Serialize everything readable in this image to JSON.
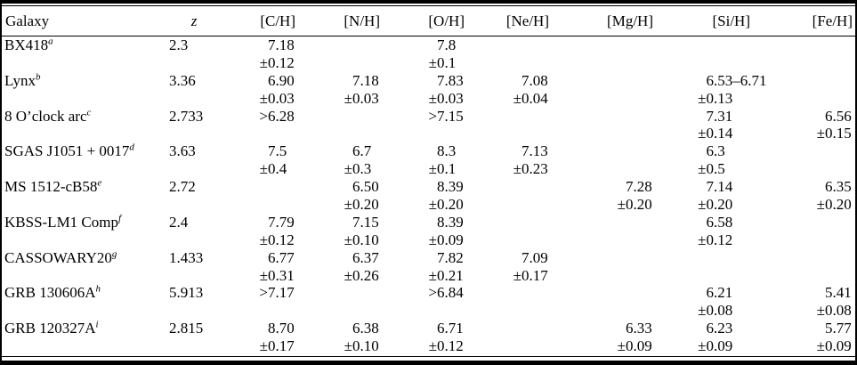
{
  "colors": {
    "text": "#000000",
    "background": "#ffffff",
    "rule": "#000000"
  },
  "table": {
    "columns": [
      {
        "key": "galaxy",
        "label": "Galaxy"
      },
      {
        "key": "z",
        "label": "z"
      },
      {
        "key": "c-h",
        "label": "[C/H]"
      },
      {
        "key": "n-h",
        "label": "[N/H]"
      },
      {
        "key": "o-h",
        "label": "[O/H]"
      },
      {
        "key": "ne-h",
        "label": "[Ne/H]"
      },
      {
        "key": "mg-h",
        "label": "[Mg/H]"
      },
      {
        "key": "si-h",
        "label": "[Si/H]"
      },
      {
        "key": "fe-h",
        "label": "[Fe/H]"
      }
    ],
    "rows": [
      {
        "galaxy": "BX418",
        "sup": "a",
        "z": "2.3",
        "cells": [
          {
            "v": "7.18",
            "e": "±0.12"
          },
          null,
          {
            "v": "7.8",
            "e": "±0.1"
          },
          null,
          null,
          null,
          null
        ]
      },
      {
        "galaxy": "Lynx",
        "sup": "b",
        "z": "3.36",
        "cells": [
          {
            "v": "6.90",
            "e": "±0.03"
          },
          {
            "v": "7.18",
            "e": "±0.03"
          },
          {
            "v": "7.83",
            "e": "±0.03"
          },
          {
            "v": "7.08",
            "e": "±0.04"
          },
          null,
          {
            "v": "6.53–6.71",
            "e": "±0.13"
          },
          null
        ]
      },
      {
        "galaxy": "8 O’clock arc",
        "sup": "c",
        "z": "2.733",
        "cells": [
          {
            "v": ">6.28",
            "e": ""
          },
          null,
          {
            "v": ">7.15",
            "e": ""
          },
          null,
          null,
          {
            "v": "7.31",
            "e": "±0.14"
          },
          {
            "v": "6.56",
            "e": "±0.15"
          }
        ]
      },
      {
        "galaxy": "SGAS J1051 + 0017",
        "sup": "d",
        "z": "3.63",
        "cells": [
          {
            "v": "7.5",
            "e": "±0.4"
          },
          {
            "v": "6.7",
            "e": "±0.3"
          },
          {
            "v": "8.3",
            "e": "±0.1"
          },
          {
            "v": "7.13",
            "e": "±0.23"
          },
          null,
          {
            "v": "6.3",
            "e": "±0.5"
          },
          null
        ]
      },
      {
        "galaxy": "MS 1512-cB58",
        "sup": "e",
        "z": "2.72",
        "cells": [
          null,
          {
            "v": "6.50",
            "e": "±0.20"
          },
          {
            "v": "8.39",
            "e": "±0.20"
          },
          null,
          {
            "v": "7.28",
            "e": "±0.20"
          },
          {
            "v": "7.14",
            "e": "±0.20"
          },
          {
            "v": "6.35",
            "e": "±0.20"
          }
        ]
      },
      {
        "galaxy": "KBSS-LM1 Comp",
        "sup": "f",
        "z": "2.4",
        "cells": [
          {
            "v": "7.79",
            "e": "±0.12"
          },
          {
            "v": "7.15",
            "e": "±0.10"
          },
          {
            "v": "8.39",
            "e": "±0.09"
          },
          null,
          null,
          {
            "v": "6.58",
            "e": "±0.12"
          },
          null
        ]
      },
      {
        "galaxy": "CASSOWARY20",
        "sup": "g",
        "z": "1.433",
        "cells": [
          {
            "v": "6.77",
            "e": "±0.31"
          },
          {
            "v": "6.37",
            "e": "±0.26"
          },
          {
            "v": "7.82",
            "e": "±0.21"
          },
          {
            "v": "7.09",
            "e": "±0.17"
          },
          null,
          null,
          null
        ]
      },
      {
        "galaxy": "GRB 130606A",
        "sup": "h",
        "z": "5.913",
        "cells": [
          {
            "v": ">7.17",
            "e": ""
          },
          null,
          {
            "v": ">6.84",
            "e": ""
          },
          null,
          null,
          {
            "v": "6.21",
            "e": "±0.08"
          },
          {
            "v": "5.41",
            "e": "±0.08"
          }
        ]
      },
      {
        "galaxy": "GRB 120327A",
        "sup": "i",
        "z": "2.815",
        "cells": [
          {
            "v": "8.70",
            "e": "±0.17"
          },
          {
            "v": "6.38",
            "e": "±0.10"
          },
          {
            "v": "6.71",
            "e": "±0.12"
          },
          null,
          {
            "v": "6.33",
            "e": "±0.09"
          },
          {
            "v": "6.23",
            "e": "±0.09"
          },
          {
            "v": "5.77",
            "e": "±0.09"
          }
        ]
      }
    ]
  }
}
